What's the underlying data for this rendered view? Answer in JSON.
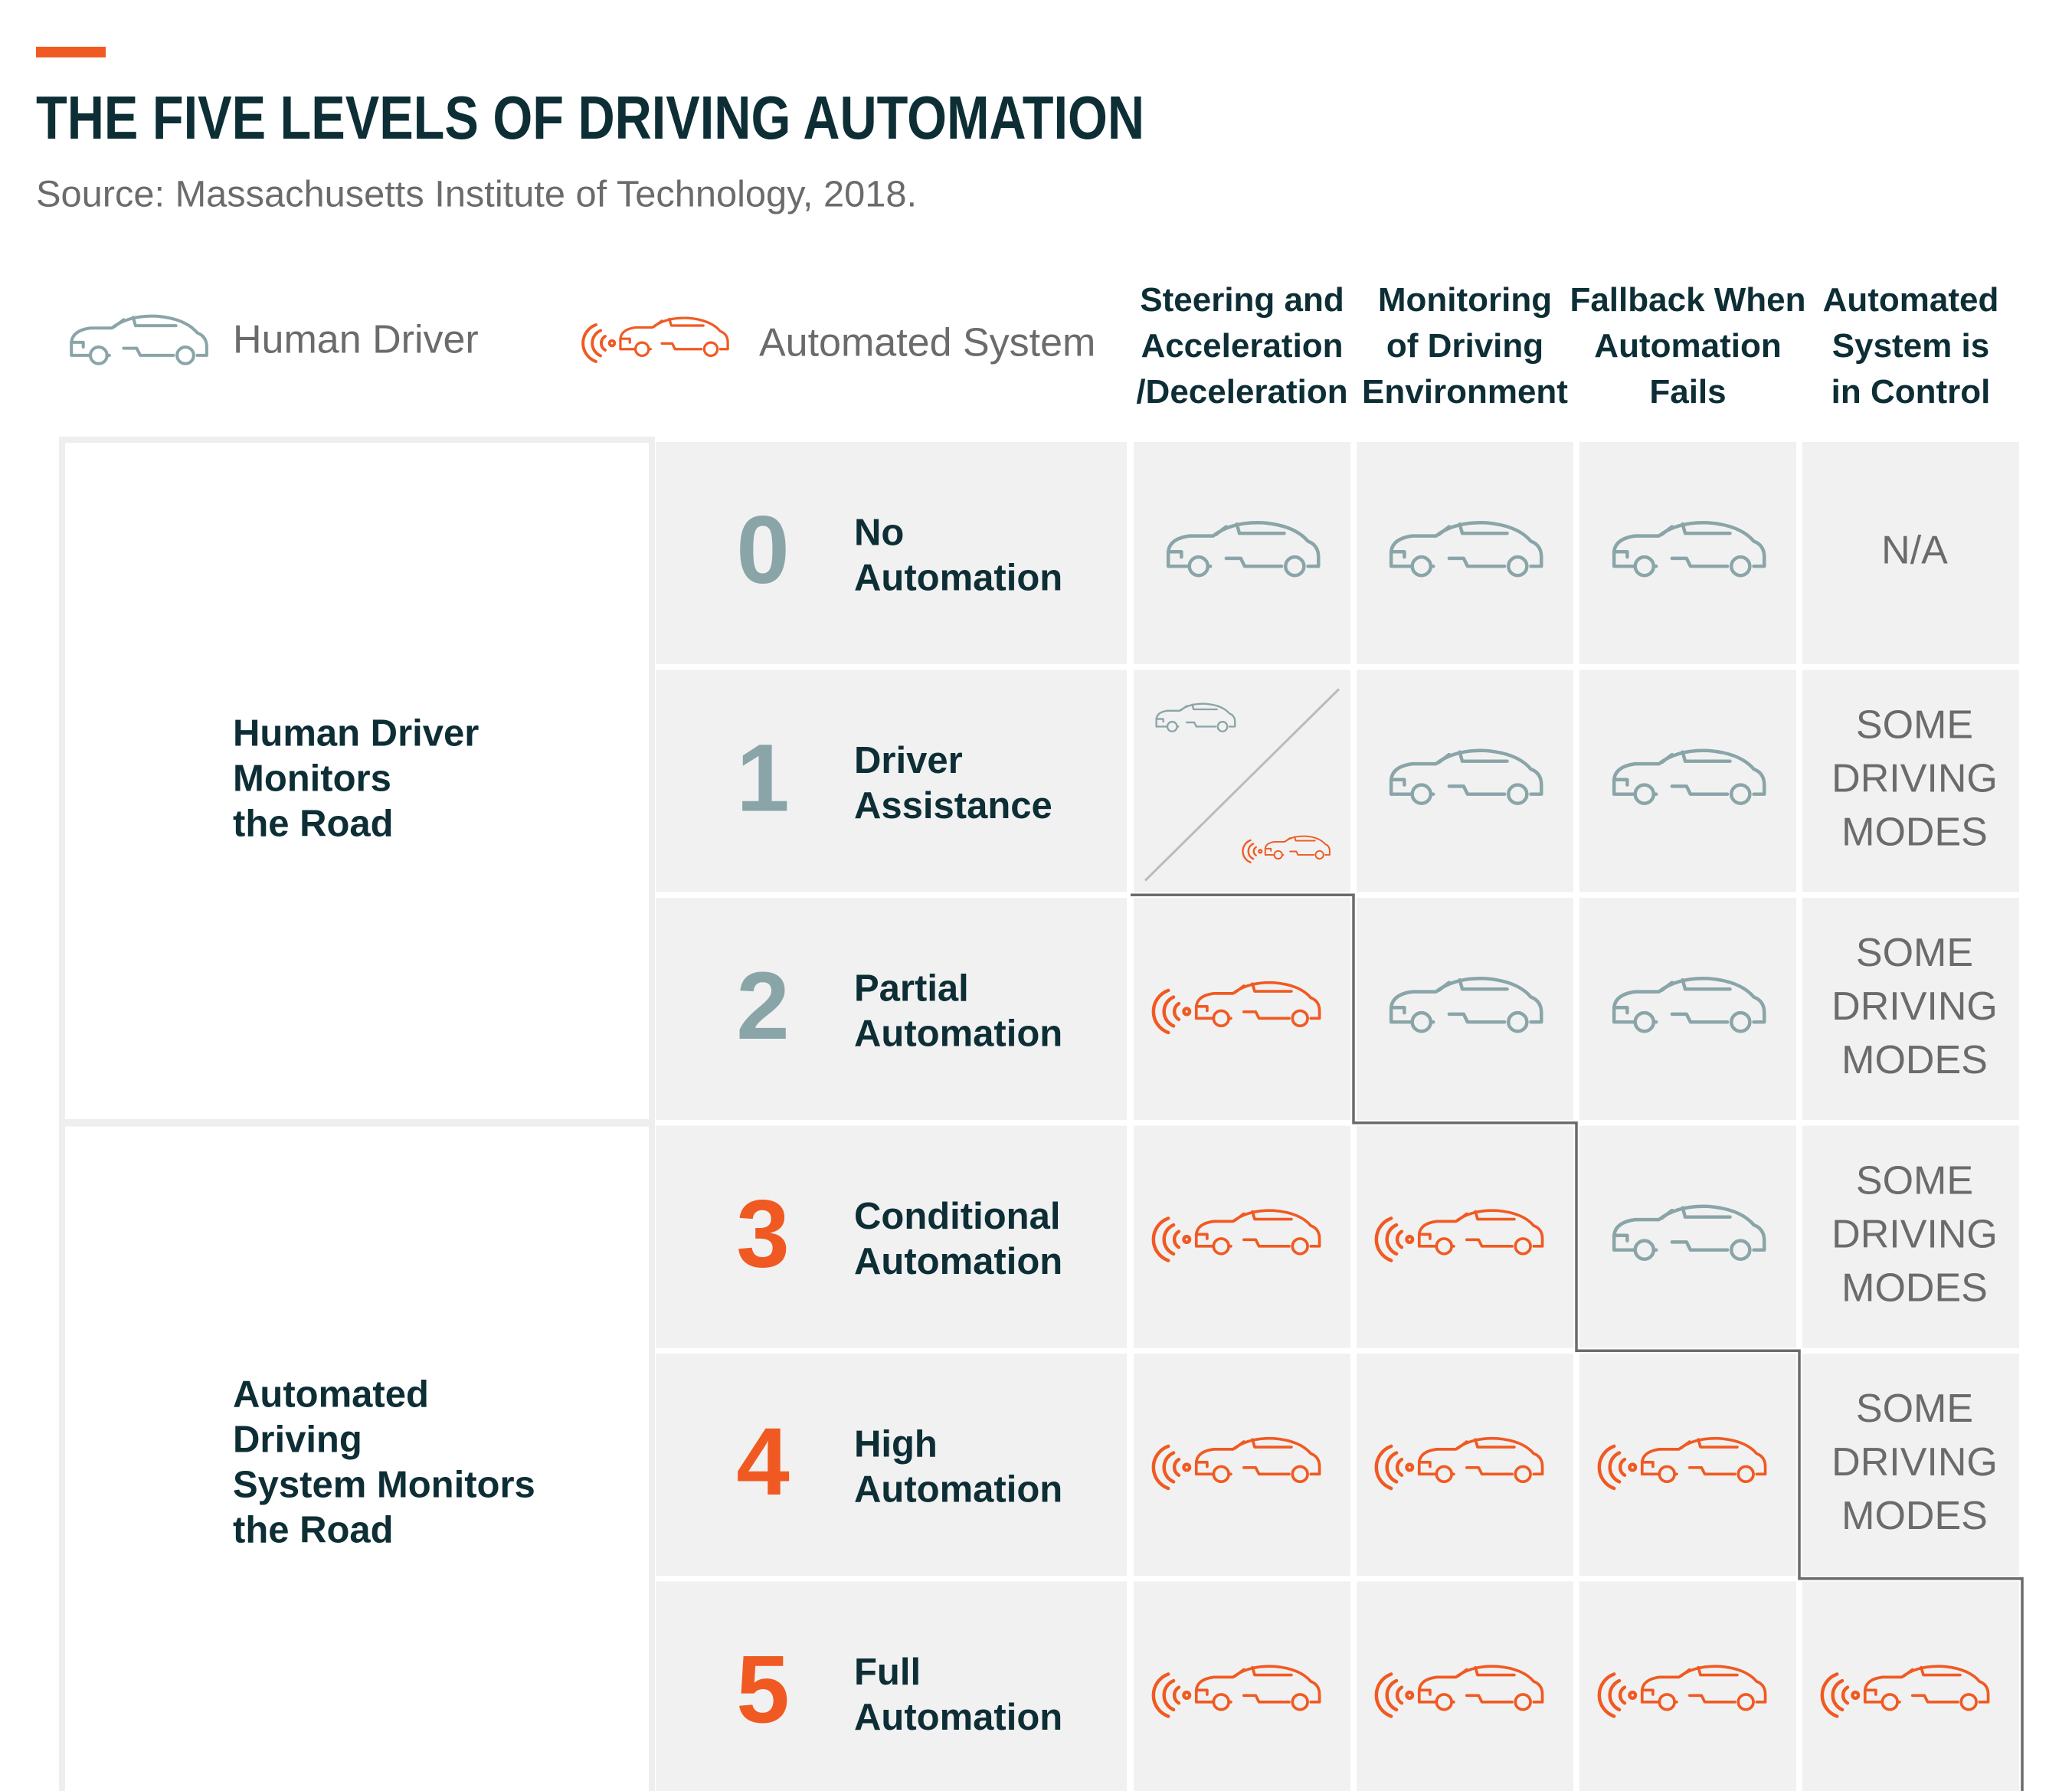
{
  "header": {
    "title": "THE FIVE LEVELS OF DRIVING AUTOMATION",
    "source": "Source: Massachusetts Institute of Technology, 2018."
  },
  "legend": {
    "human": {
      "label": "Human Driver",
      "color": "#8aa5a8"
    },
    "automated": {
      "label": "Automated System",
      "color": "#f05a22"
    }
  },
  "columns": [
    "Steering and\nAcceleration\n/Deceleration",
    "Monitoring\nof Driving\nEnvironment",
    "Fallback When\nAutomation\nFails",
    "Automated\nSystem is\nin Control"
  ],
  "groups": [
    {
      "label": "Human Driver\nMonitors\nthe Road"
    },
    {
      "label": "Automated\nDriving\nSystem Monitors\nthe Road"
    }
  ],
  "levels": [
    {
      "number": "0",
      "name": "No\nAutomation",
      "control": "N/A"
    },
    {
      "number": "1",
      "name": "Driver\nAssistance",
      "control": "SOME\nDRIVING\nMODES"
    },
    {
      "number": "2",
      "name": "Partial\nAutomation",
      "control": "SOME\nDRIVING\nMODES"
    },
    {
      "number": "3",
      "name": "Conditional\nAutomation",
      "control": "SOME\nDRIVING\nMODES"
    },
    {
      "number": "4",
      "name": "High\nAutomation",
      "control": "SOME\nDRIVING\nMODES"
    },
    {
      "number": "5",
      "name": "Full\nAutomation"
    }
  ]
}
